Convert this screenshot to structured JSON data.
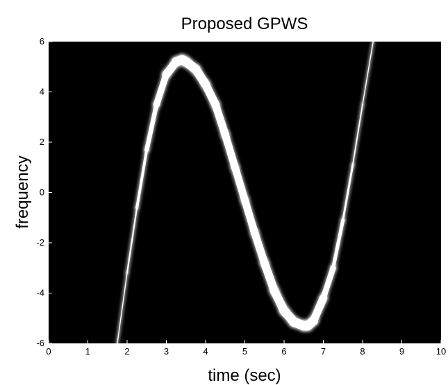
{
  "chart_data": {
    "type": "line",
    "title": "Proposed GPWS",
    "xlabel": "time (sec)",
    "ylabel": "frequency",
    "xlim": [
      0,
      10
    ],
    "ylim": [
      -6,
      6
    ],
    "xticks": [
      "0",
      "1",
      "2",
      "3",
      "4",
      "5",
      "6",
      "7",
      "8",
      "9",
      "10"
    ],
    "yticks": [
      "6",
      "4",
      "2",
      "0",
      "-2",
      "-4",
      "-6"
    ],
    "background": "#000000",
    "curve_color": "#ffffff",
    "grid": false,
    "series": [
      {
        "x": [
          1.75,
          2.0,
          2.25,
          2.5,
          2.75,
          3.0,
          3.25,
          3.4,
          3.5,
          3.75,
          4.0,
          4.25,
          4.5,
          4.75,
          5.0,
          5.25,
          5.5,
          5.75,
          6.0,
          6.25,
          6.5,
          6.6,
          6.75,
          7.0,
          7.25,
          7.5,
          7.75,
          8.0,
          8.27
        ],
        "y": [
          -6.0,
          -3.2,
          -0.6,
          1.7,
          3.5,
          4.7,
          5.2,
          5.28,
          5.2,
          4.9,
          4.3,
          3.5,
          2.3,
          1.0,
          -0.3,
          -1.6,
          -2.8,
          -3.9,
          -4.7,
          -5.15,
          -5.3,
          -5.3,
          -5.1,
          -4.2,
          -3.0,
          -1.1,
          1.1,
          3.5,
          6.0
        ],
        "width": [
          0.02,
          0.04,
          0.08,
          0.14,
          0.22,
          0.3,
          0.36,
          0.38,
          0.38,
          0.36,
          0.34,
          0.32,
          0.3,
          0.3,
          0.3,
          0.3,
          0.32,
          0.34,
          0.36,
          0.38,
          0.38,
          0.38,
          0.36,
          0.28,
          0.18,
          0.1,
          0.06,
          0.04,
          0.02
        ]
      }
    ]
  }
}
